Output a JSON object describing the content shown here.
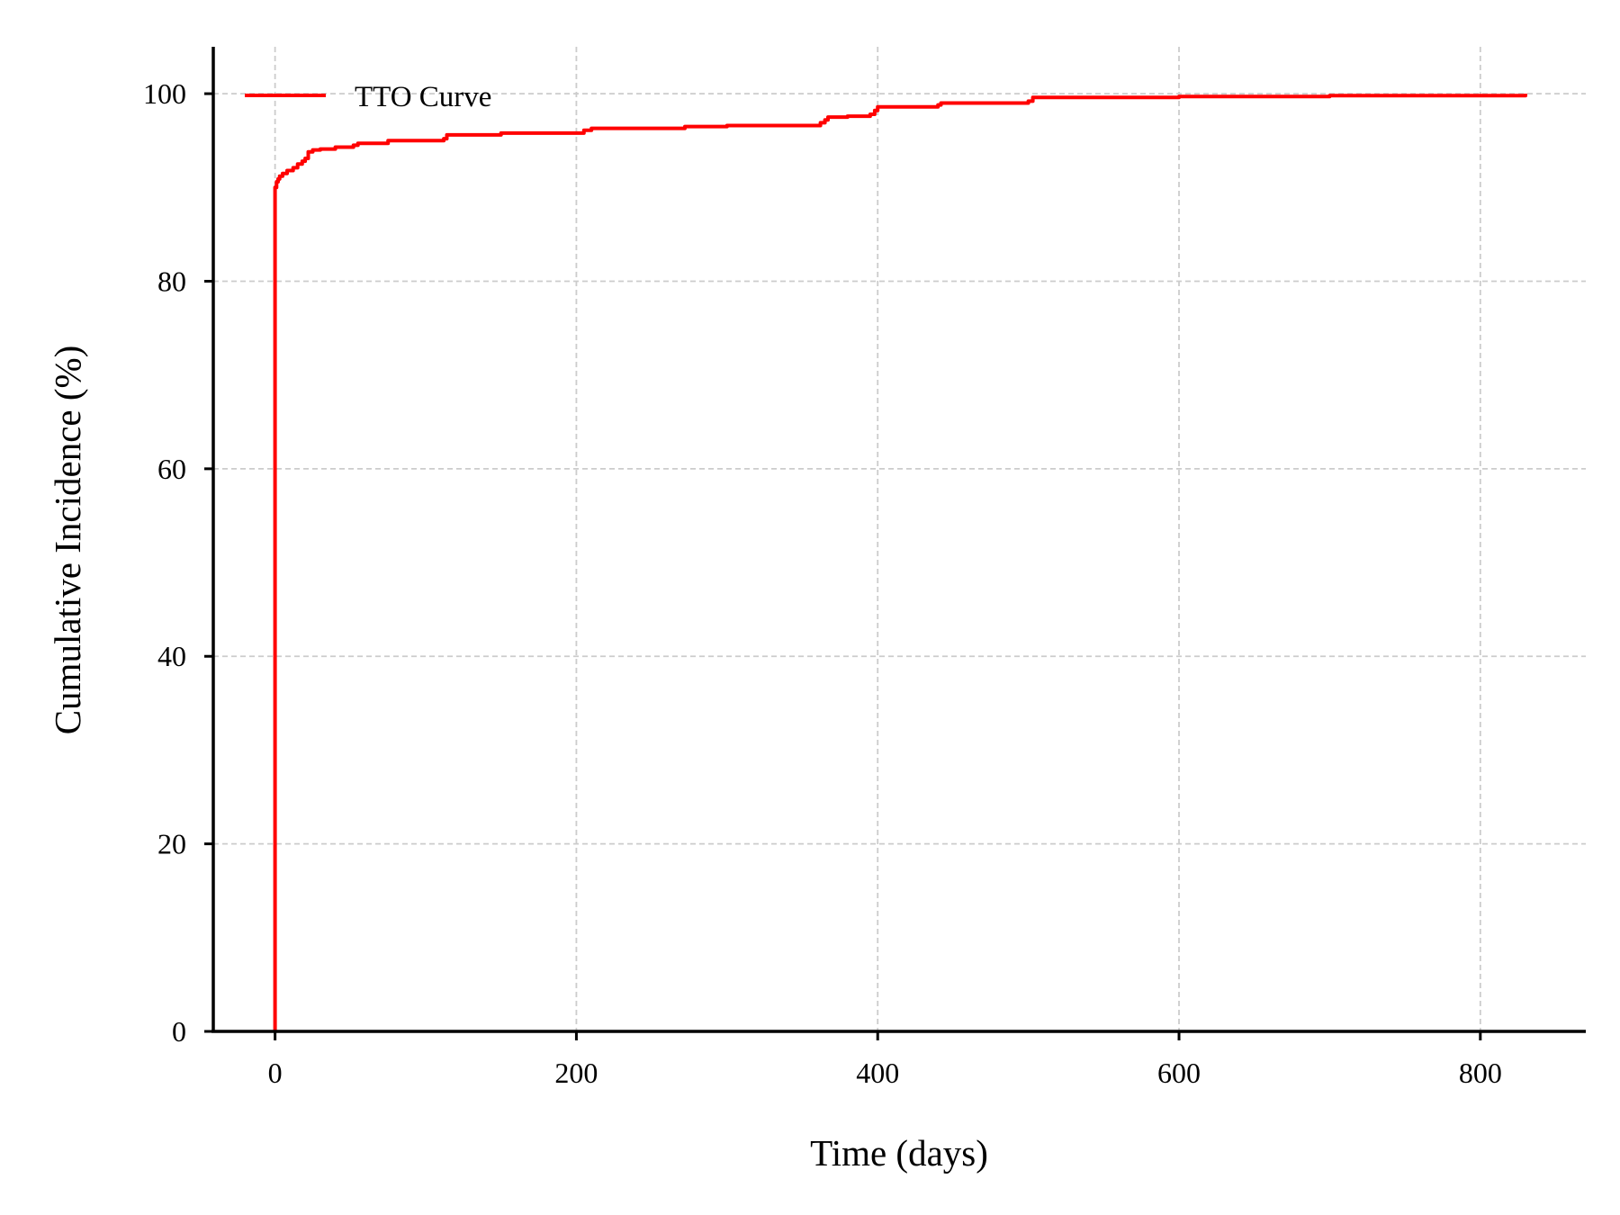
{
  "chart_data": {
    "type": "line",
    "xlabel": "Time (days)",
    "ylabel": "Cumulative Incidence (%)",
    "xlim": [
      -41,
      870
    ],
    "ylim": [
      0,
      105
    ],
    "x_ticks": [
      0,
      200,
      400,
      600,
      800
    ],
    "y_ticks": [
      0,
      20,
      40,
      60,
      80,
      100
    ],
    "grid": true,
    "legend_position": "top-left",
    "series": [
      {
        "name": "TTO Curve",
        "color": "#ff0000",
        "step": true,
        "x": [
          0,
          0,
          1,
          2,
          3,
          5,
          8,
          12,
          15,
          18,
          20,
          22,
          25,
          30,
          40,
          52,
          55,
          75,
          112,
          114,
          150,
          205,
          210,
          272,
          300,
          362,
          365,
          367,
          380,
          395,
          398,
          400,
          440,
          442,
          500,
          503,
          600,
          700,
          830
        ],
        "y": [
          0,
          90.0,
          90.6,
          90.9,
          91.2,
          91.5,
          91.8,
          92.1,
          92.5,
          92.8,
          93.1,
          93.8,
          94.0,
          94.1,
          94.3,
          94.5,
          94.7,
          95.0,
          95.2,
          95.6,
          95.8,
          96.1,
          96.3,
          96.5,
          96.6,
          96.9,
          97.2,
          97.5,
          97.6,
          97.8,
          98.2,
          98.6,
          98.8,
          99.0,
          99.2,
          99.6,
          99.7,
          99.8,
          100.0
        ]
      }
    ]
  }
}
